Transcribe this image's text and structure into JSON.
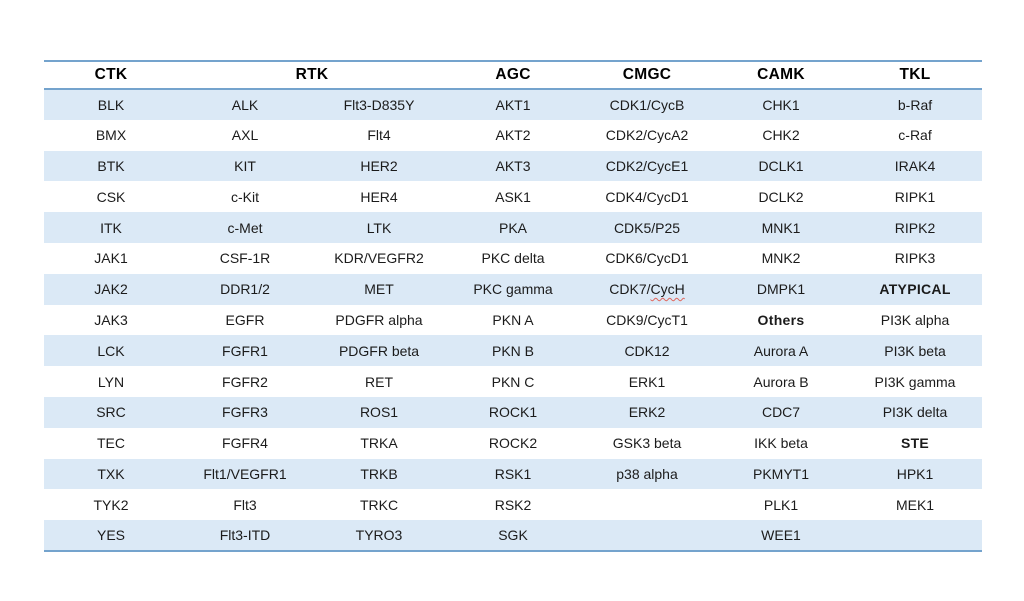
{
  "table": {
    "column_headers": [
      {
        "label": "CTK",
        "span": 1
      },
      {
        "label": "RTK",
        "span": 2
      },
      {
        "label": "AGC",
        "span": 1
      },
      {
        "label": "CMGC",
        "span": 1
      },
      {
        "label": "CAMK",
        "span": 1
      },
      {
        "label": "TKL",
        "span": 1
      }
    ],
    "rows": [
      [
        "BLK",
        "ALK",
        "Flt3-D835Y",
        "AKT1",
        "CDK1/CycB",
        "CHK1",
        "b-Raf"
      ],
      [
        "BMX",
        "AXL",
        "Flt4",
        "AKT2",
        "CDK2/CycA2",
        "CHK2",
        "c-Raf"
      ],
      [
        "BTK",
        "KIT",
        "HER2",
        "AKT3",
        "CDK2/CycE1",
        "DCLK1",
        "IRAK4"
      ],
      [
        "CSK",
        "c-Kit",
        "HER4",
        "ASK1",
        "CDK4/CycD1",
        "DCLK2",
        "RIPK1"
      ],
      [
        "ITK",
        "c-Met",
        "LTK",
        "PKA",
        "CDK5/P25",
        "MNK1",
        "RIPK2"
      ],
      [
        "JAK1",
        "CSF-1R",
        "KDR/VEGFR2",
        "PKC delta",
        "CDK6/CycD1",
        "MNK2",
        "RIPK3"
      ],
      [
        "JAK2",
        "DDR1/2",
        "MET",
        "PKC gamma",
        "CDK7/CycH",
        "DMPK1",
        "ATYPICAL"
      ],
      [
        "JAK3",
        "EGFR",
        "PDGFR alpha",
        "PKN A",
        "CDK9/CycT1",
        "Others",
        "PI3K alpha"
      ],
      [
        "LCK",
        "FGFR1",
        "PDGFR beta",
        "PKN B",
        "CDK12",
        "Aurora A",
        "PI3K beta"
      ],
      [
        "LYN",
        "FGFR2",
        "RET",
        "PKN C",
        "ERK1",
        "Aurora B",
        "PI3K gamma"
      ],
      [
        "SRC",
        "FGFR3",
        "ROS1",
        "ROCK1",
        "ERK2",
        "CDC7",
        "PI3K delta"
      ],
      [
        "TEC",
        "FGFR4",
        "TRKA",
        "ROCK2",
        "GSK3 beta",
        "IKK beta",
        "STE"
      ],
      [
        "TXK",
        "Flt1/VEGFR1",
        "TRKB",
        "RSK1",
        "p38 alpha",
        "PKMYT1",
        "HPK1"
      ],
      [
        "TYK2",
        "Flt3",
        "TRKC",
        "RSK2",
        "",
        "PLK1",
        "MEK1"
      ],
      [
        "YES",
        "Flt3-ITD",
        "TYRO3",
        "SGK",
        "",
        "WEE1",
        ""
      ]
    ],
    "bold_cells": [
      [
        6,
        6
      ],
      [
        7,
        5
      ],
      [
        11,
        6
      ]
    ],
    "small_cells": [
      [
        13,
        5
      ]
    ],
    "spellcheck_cell": {
      "row": 6,
      "col": 4,
      "text_before": "CDK7/",
      "text_underlined": "CycH"
    },
    "banded_row_indices": [
      0,
      2,
      4,
      6,
      8,
      10,
      12,
      14
    ]
  },
  "colors": {
    "band_fill": "#dbe9f6",
    "border_blue": "#74a3cd",
    "header_text": "#000000",
    "cell_text": "#1b1b1b",
    "spellcheck_underline": "#e0645a",
    "background": "#ffffff"
  }
}
